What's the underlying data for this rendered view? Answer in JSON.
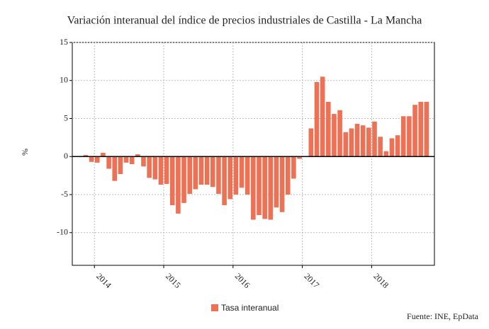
{
  "chart_data": {
    "type": "bar",
    "title": "Variación interanual del índice de precios industriales de Castilla - La Mancha",
    "y_label": "%",
    "source": "Fuente: INE, EpData",
    "categories": [
      null,
      null,
      "2014",
      null,
      null,
      null,
      null,
      null,
      null,
      null,
      null,
      null,
      null,
      null,
      "2015",
      null,
      null,
      null,
      null,
      null,
      null,
      null,
      null,
      null,
      null,
      null,
      "2016",
      null,
      null,
      null,
      null,
      null,
      null,
      null,
      null,
      null,
      null,
      null,
      "2017",
      null,
      null,
      null,
      null,
      null,
      null,
      null,
      null,
      null,
      null,
      null,
      "2018",
      null,
      null,
      null,
      null,
      null,
      null,
      null,
      null,
      null
    ],
    "series": [
      {
        "name": "Tasa interanual",
        "color": "#ec7155",
        "values": [
          0.2,
          -0.7,
          -0.8,
          0.5,
          -1.6,
          -3.2,
          -2.3,
          -0.8,
          -1.0,
          0.3,
          -1.3,
          -2.8,
          -3.0,
          -3.7,
          -3.6,
          -6.4,
          -7.5,
          -6.1,
          -4.9,
          -4.3,
          -3.7,
          -3.7,
          -4.0,
          -4.9,
          -6.4,
          -5.6,
          -5.0,
          -4.1,
          -5.0,
          -8.3,
          -7.7,
          -8.2,
          -8.3,
          -6.7,
          -7.3,
          -5.0,
          -2.9,
          -0.3,
          0.0,
          3.7,
          9.8,
          10.5,
          7.2,
          5.6,
          6.1,
          3.2,
          3.7,
          4.3,
          4.1,
          3.8,
          4.6,
          2.6,
          0.7,
          2.4,
          2.8,
          5.3,
          5.3,
          6.8,
          7.2,
          7.2
        ]
      }
    ],
    "ylim": [
      -14.3,
      15
    ],
    "yticks": [
      -10,
      -5,
      0,
      5,
      10,
      15
    ],
    "grid": true
  }
}
